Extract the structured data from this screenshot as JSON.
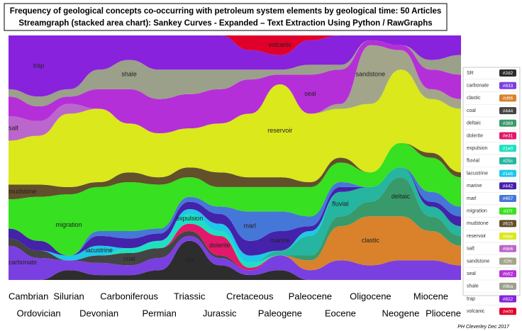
{
  "chart_data": {
    "type": "streamgraph",
    "title": "Frequency of geological concepts co-occurring with petroleum system elements by geological time: 50 Articles",
    "subtitle": "Streamgraph (stacked area chart): Sankey Curves - Expanded – Text Extraction Using Python / RawGraphs",
    "credit": "PH Cleverley Dec 2017",
    "categories": [
      "Cambrian",
      "Ordovician",
      "Silurian",
      "Devonian",
      "Carboniferous",
      "Permian",
      "Triassic",
      "Jurassic",
      "Cretaceous",
      "Paleogene",
      "Paleocene",
      "Eocene",
      "Oligocene",
      "Neogene",
      "Miocene",
      "Pliocene"
    ],
    "ylim": [
      0,
      100
    ],
    "series": [
      {
        "name": "SR",
        "legend_code": "#2d2",
        "color": "#2d2d2d",
        "values": [
          0,
          0,
          4,
          2,
          2,
          4,
          16,
          6,
          2,
          4,
          0,
          0,
          0,
          0,
          0,
          0
        ]
      },
      {
        "name": "carbonate",
        "legend_code": "#833",
        "color": "#7a3fe0",
        "values": [
          14,
          9,
          4,
          5,
          4,
          5,
          2,
          3,
          2,
          6,
          4,
          8,
          6,
          8,
          8,
          6
        ]
      },
      {
        "name": "clastic",
        "legend_code": "#d96",
        "color": "#d9822b",
        "values": [
          0,
          0,
          0,
          0,
          0,
          0,
          0,
          0,
          0,
          0,
          4,
          14,
          20,
          18,
          12,
          8
        ]
      },
      {
        "name": "coal",
        "legend_code": "#444",
        "color": "#444444",
        "values": [
          3,
          3,
          0,
          3,
          5,
          4,
          2,
          1,
          0,
          0,
          0,
          0,
          0,
          0,
          0,
          0
        ]
      },
      {
        "name": "deltaic",
        "legend_code": "#389",
        "color": "#389a6b",
        "values": [
          0,
          0,
          0,
          0,
          0,
          0,
          0,
          0,
          0,
          0,
          2,
          4,
          6,
          16,
          6,
          4
        ]
      },
      {
        "name": "dolerite",
        "legend_code": "#e31",
        "color": "#e3186a",
        "values": [
          0,
          0,
          0,
          0,
          0,
          0,
          3,
          8,
          1,
          0,
          0,
          0,
          0,
          0,
          0,
          0
        ]
      },
      {
        "name": "expulsion",
        "legend_code": "#1e0",
        "color": "#1ee0c0",
        "values": [
          0,
          0,
          0,
          0,
          2,
          3,
          4,
          2,
          2,
          0,
          0,
          0,
          0,
          0,
          0,
          0
        ]
      },
      {
        "name": "fluvial",
        "legend_code": "#25c",
        "color": "#25b5a0",
        "values": [
          0,
          0,
          0,
          0,
          0,
          0,
          0,
          0,
          0,
          2,
          8,
          10,
          6,
          4,
          4,
          4
        ]
      },
      {
        "name": "lacustrine",
        "legend_code": "#1eb",
        "color": "#1ec8e8",
        "values": [
          0,
          0,
          2,
          4,
          0,
          0,
          2,
          3,
          3,
          0,
          2,
          0,
          0,
          0,
          0,
          0
        ]
      },
      {
        "name": "marine",
        "legend_code": "#442",
        "color": "#4422aa",
        "values": [
          4,
          4,
          0,
          4,
          4,
          3,
          3,
          4,
          6,
          8,
          2,
          2,
          0,
          0,
          2,
          4
        ]
      },
      {
        "name": "marl",
        "legend_code": "#457",
        "color": "#4577d8",
        "values": [
          0,
          0,
          0,
          2,
          3,
          2,
          2,
          3,
          12,
          8,
          4,
          2,
          0,
          0,
          4,
          4
        ]
      },
      {
        "name": "migration",
        "legend_code": "#37f",
        "color": "#37e021",
        "values": [
          12,
          18,
          25,
          18,
          20,
          18,
          8,
          8,
          10,
          10,
          12,
          8,
          6,
          10,
          14,
          12
        ]
      },
      {
        "name": "mudstone",
        "legend_code": "#615",
        "color": "#61502a",
        "values": [
          6,
          5,
          3,
          2,
          4,
          3,
          4,
          6,
          4,
          4,
          2,
          2,
          0,
          0,
          2,
          2
        ]
      },
      {
        "name": "reservoir",
        "legend_code": "#dae",
        "color": "#dae81c",
        "values": [
          18,
          20,
          30,
          30,
          20,
          18,
          16,
          20,
          26,
          38,
          28,
          20,
          28,
          30,
          22,
          26
        ]
      },
      {
        "name": "salt",
        "legend_code": "#bb6",
        "color": "#bb66cc",
        "values": [
          10,
          6,
          4,
          0,
          0,
          0,
          0,
          0,
          0,
          0,
          0,
          0,
          0,
          0,
          0,
          0
        ]
      },
      {
        "name": "sandstone",
        "legend_code": "#2fc",
        "color": "#a3a58a",
        "values": [
          0,
          0,
          0,
          0,
          0,
          0,
          0,
          0,
          0,
          0,
          0,
          2,
          24,
          8,
          4,
          4
        ]
      },
      {
        "name": "seal",
        "legend_code": "#b52",
        "color": "#b52fd8",
        "values": [
          8,
          6,
          3,
          8,
          14,
          14,
          14,
          14,
          14,
          4,
          16,
          14,
          2,
          2,
          8,
          10
        ]
      },
      {
        "name": "shale",
        "legend_code": "#9ba",
        "color": "#9ba08a",
        "values": [
          3,
          4,
          3,
          8,
          12,
          12,
          10,
          8,
          4,
          2,
          4,
          2,
          0,
          0,
          4,
          8
        ]
      },
      {
        "name": "trap",
        "legend_code": "#822",
        "color": "#8822dd",
        "values": [
          22,
          25,
          22,
          14,
          10,
          14,
          14,
          14,
          8,
          6,
          10,
          12,
          2,
          4,
          10,
          8
        ]
      },
      {
        "name": "volcanic",
        "legend_code": "#e00",
        "color": "#e0002a",
        "values": [
          0,
          0,
          0,
          0,
          0,
          0,
          0,
          0,
          6,
          8,
          2,
          0,
          0,
          0,
          0,
          0
        ]
      }
    ]
  }
}
